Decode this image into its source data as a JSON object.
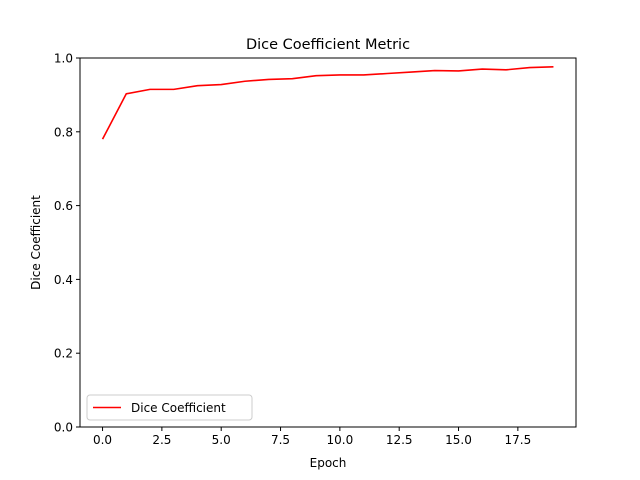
{
  "chart_data": {
    "type": "line",
    "title": "Dice Coefficient Metric",
    "xlabel": "Epoch",
    "ylabel": "Dice  Coefficient",
    "xlim": [
      -0.95,
      19.95
    ],
    "ylim": [
      0.0,
      1.0
    ],
    "xticks": [
      0.0,
      2.5,
      5.0,
      7.5,
      10.0,
      12.5,
      15.0,
      17.5
    ],
    "xtick_labels": [
      "0.0",
      "2.5",
      "5.0",
      "7.5",
      "10.0",
      "12.5",
      "15.0",
      "17.5"
    ],
    "yticks": [
      0.0,
      0.2,
      0.4,
      0.6,
      0.8,
      1.0
    ],
    "ytick_labels": [
      "0.0",
      "0.2",
      "0.4",
      "0.6",
      "0.8",
      "1.0"
    ],
    "grid": false,
    "legend_position": "lower-left",
    "series": [
      {
        "name": "Dice Coefficient",
        "color": "#ff0000",
        "x": [
          0,
          1,
          2,
          3,
          4,
          5,
          6,
          7,
          8,
          9,
          10,
          11,
          12,
          13,
          14,
          15,
          16,
          17,
          18,
          19
        ],
        "y": [
          0.78,
          0.903,
          0.915,
          0.915,
          0.925,
          0.928,
          0.937,
          0.942,
          0.944,
          0.952,
          0.954,
          0.954,
          0.958,
          0.962,
          0.966,
          0.965,
          0.97,
          0.968,
          0.974,
          0.976
        ]
      }
    ]
  }
}
